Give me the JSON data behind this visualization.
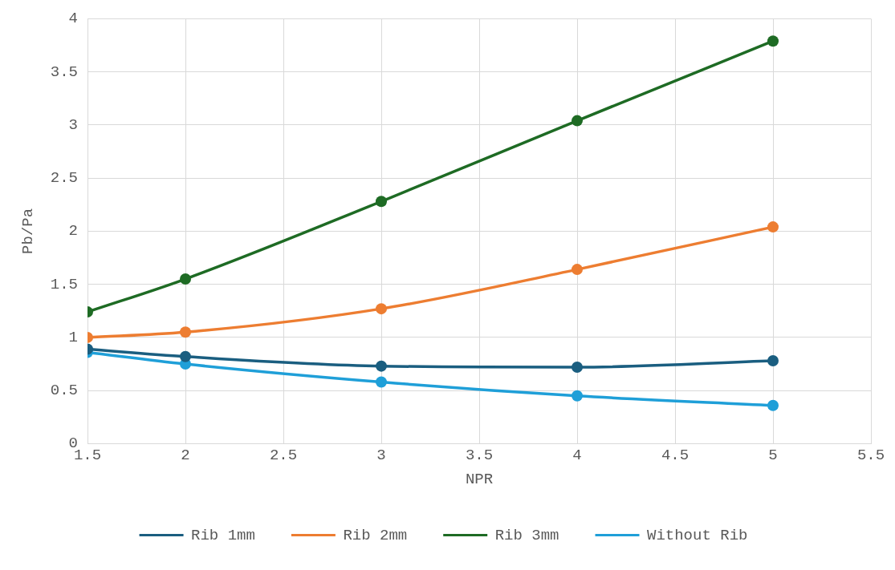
{
  "chart_data": {
    "type": "line",
    "xlabel": "NPR",
    "ylabel": "Pb/Pa",
    "x": [
      1.5,
      2,
      3,
      4,
      5
    ],
    "series": [
      {
        "name": "Rib 1mm",
        "color": "#1a5e80",
        "values": [
          0.89,
          0.82,
          0.73,
          0.72,
          0.78
        ]
      },
      {
        "name": "Rib 2mm",
        "color": "#ed7d31",
        "values": [
          1.0,
          1.05,
          1.27,
          1.64,
          2.04
        ]
      },
      {
        "name": "Rib 3mm",
        "color": "#1e6b24",
        "values": [
          1.24,
          1.55,
          2.28,
          3.04,
          3.79
        ]
      },
      {
        "name": "Without Rib",
        "color": "#1f9fd8",
        "values": [
          0.86,
          0.75,
          0.58,
          0.45,
          0.36
        ]
      }
    ],
    "xlim": [
      1.5,
      5.5
    ],
    "xticks": [
      1.5,
      2,
      2.5,
      3,
      3.5,
      4,
      4.5,
      5,
      5.5
    ],
    "ylim": [
      0,
      4
    ],
    "yticks": [
      0,
      0.5,
      1,
      1.5,
      2,
      2.5,
      3,
      3.5,
      4
    ],
    "grid": true,
    "legend": "bottom",
    "marker": "circle",
    "line_style": "solid"
  }
}
